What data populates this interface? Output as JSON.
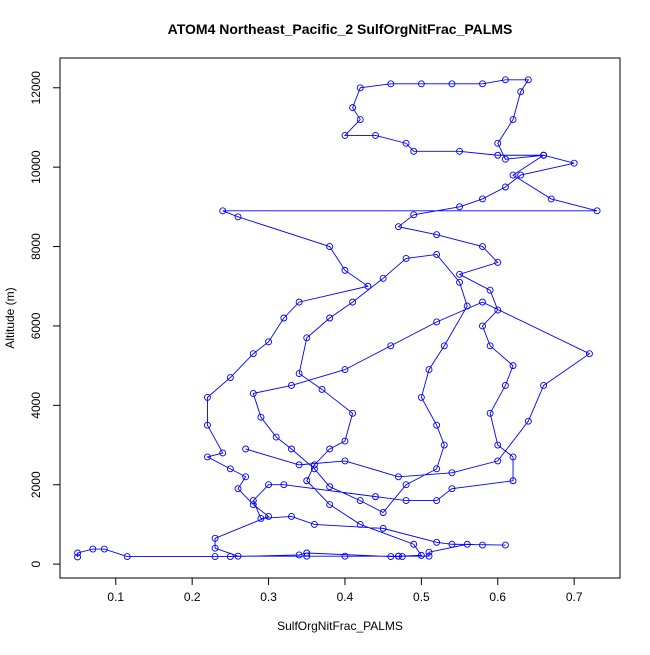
{
  "chart_data": {
    "type": "line",
    "markers": true,
    "title": "ATOM4 Northeast_Pacific_2 SulfOrgNitFrac_PALMS",
    "x_label": "SulfOrgNitFrac_PALMS",
    "y_label": "Altitude (m)",
    "color": "#0000ff",
    "xlim": [
      0.027,
      0.76
    ],
    "ylim": [
      -350,
      12750
    ],
    "xticks": [
      0.1,
      0.2,
      0.3,
      0.4,
      0.5,
      0.6,
      0.7
    ],
    "yticks": [
      0,
      2000,
      4000,
      6000,
      8000,
      10000,
      12000
    ],
    "x": [
      0.05,
      0.05,
      0.07,
      0.085,
      0.115,
      0.23,
      0.25,
      0.34,
      0.35,
      0.46,
      0.475,
      0.47,
      0.51,
      0.51,
      0.56,
      0.58,
      0.61,
      0.54,
      0.52,
      0.45,
      0.36,
      0.33,
      0.29,
      0.28,
      0.3,
      0.32,
      0.44,
      0.48,
      0.52,
      0.54,
      0.62,
      0.62,
      0.6,
      0.59,
      0.61,
      0.62,
      0.59,
      0.58,
      0.6,
      0.59,
      0.55,
      0.6,
      0.58,
      0.52,
      0.47,
      0.49,
      0.55,
      0.58,
      0.61,
      0.63,
      0.7,
      0.66,
      0.6,
      0.55,
      0.49,
      0.48,
      0.44,
      0.4,
      0.42,
      0.41,
      0.42,
      0.46,
      0.5,
      0.54,
      0.58,
      0.61,
      0.64,
      0.63,
      0.62,
      0.6,
      0.61,
      0.66,
      0.62,
      0.67,
      0.73,
      0.24,
      0.26,
      0.38,
      0.4,
      0.43,
      0.34,
      0.32,
      0.3,
      0.28,
      0.25,
      0.22,
      0.22,
      0.24,
      0.22,
      0.25,
      0.27,
      0.26,
      0.28,
      0.3,
      0.23,
      0.23,
      0.26,
      0.35,
      0.4,
      0.47,
      0.5,
      0.49,
      0.42,
      0.38,
      0.35,
      0.36,
      0.38,
      0.4,
      0.41,
      0.37,
      0.34,
      0.35,
      0.38,
      0.41,
      0.45,
      0.48,
      0.52,
      0.55,
      0.56,
      0.53,
      0.51,
      0.5,
      0.52,
      0.53,
      0.52,
      0.48,
      0.45,
      0.42,
      0.38,
      0.36,
      0.33,
      0.31,
      0.29,
      0.28,
      0.33,
      0.4,
      0.46,
      0.52,
      0.58,
      0.72,
      0.66,
      0.64,
      0.6,
      0.54,
      0.47,
      0.4,
      0.34,
      0.27
    ],
    "values": [
      180,
      280,
      380,
      380,
      190,
      190,
      190,
      230,
      280,
      190,
      190,
      200,
      200,
      300,
      500,
      480,
      480,
      500,
      550,
      900,
      1000,
      1200,
      1150,
      1600,
      2000,
      2000,
      1700,
      1600,
      1600,
      1900,
      2100,
      2700,
      3000,
      3800,
      4500,
      5000,
      5500,
      6000,
      6400,
      6900,
      7300,
      7600,
      8000,
      8300,
      8500,
      8800,
      9000,
      9200,
      9500,
      9800,
      10100,
      10300,
      10300,
      10400,
      10400,
      10600,
      10800,
      10800,
      11200,
      11500,
      12000,
      12100,
      12100,
      12100,
      12100,
      12200,
      12200,
      11900,
      11200,
      10600,
      10200,
      10300,
      9800,
      9200,
      8900,
      8900,
      8750,
      8000,
      7400,
      7000,
      6600,
      6200,
      5600,
      5300,
      4700,
      4200,
      3500,
      2800,
      2700,
      2400,
      2200,
      1900,
      1500,
      1200,
      650,
      400,
      200,
      200,
      200,
      200,
      220,
      500,
      1000,
      1500,
      2100,
      2500,
      2900,
      3100,
      3800,
      4400,
      4800,
      5700,
      6200,
      6600,
      7200,
      7700,
      7800,
      7100,
      6500,
      5500,
      4900,
      4200,
      3500,
      3000,
      2400,
      2000,
      1300,
      1600,
      1950,
      2400,
      2900,
      3200,
      3700,
      4300,
      4500,
      4900,
      5500,
      6100,
      6600,
      5300,
      4500,
      3600,
      2600,
      2300,
      2200,
      2600,
      2500,
      2900
    ]
  }
}
